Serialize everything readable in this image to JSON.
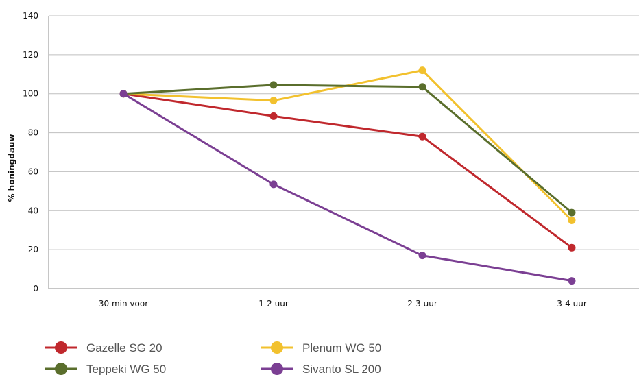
{
  "chart_data": {
    "type": "line",
    "ylabel": "% honingdauw",
    "xlabel": "",
    "ylim": [
      0,
      140
    ],
    "yticks": [
      0,
      20,
      40,
      60,
      80,
      100,
      120,
      140
    ],
    "categories": [
      "30 min voor",
      "1-2 uur",
      "2-3 uur",
      "3-4 uur"
    ],
    "grid": true,
    "legend_position": "bottom-left",
    "series": [
      {
        "name": "Gazelle SG 20",
        "color": "#c0282d",
        "values": [
          100,
          88.5,
          78,
          21
        ]
      },
      {
        "name": "Plenum WG 50",
        "color": "#f2c12e",
        "values": [
          100,
          96.5,
          112,
          35
        ]
      },
      {
        "name": "Teppeki WG 50",
        "color": "#5a6e2c",
        "values": [
          100,
          104.5,
          103.5,
          39
        ]
      },
      {
        "name": "Sivanto SL 200",
        "color": "#7b3f93",
        "values": [
          100,
          53.5,
          17,
          4
        ]
      }
    ]
  }
}
